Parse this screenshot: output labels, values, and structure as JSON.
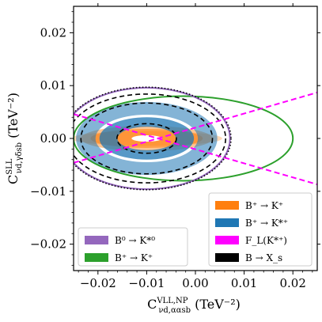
{
  "chart_data": {
    "type": "contour",
    "xlabel": "C^{VLL,NP}_{νd,ααsb} (TeV^{-2})",
    "ylabel": "C^{SLL}_{νd,γδsb} (TeV^{-2})",
    "xlim": [
      -0.025,
      0.025
    ],
    "ylim": [
      -0.025,
      0.025
    ],
    "xticks": [
      -0.02,
      -0.01,
      0.0,
      0.01,
      0.02
    ],
    "xtick_labels": [
      "−0.02",
      "−0.01",
      "0.00",
      "0.01",
      "0.02"
    ],
    "yticks": [
      -0.02,
      -0.01,
      0.0,
      0.01,
      0.02
    ],
    "ytick_labels": [
      "−0.02",
      "−0.01",
      "0.00",
      "0.01",
      "0.02"
    ],
    "colors": {
      "orange": "#ff7f0e",
      "blue": "#1f77b4",
      "magenta": "#ff00ff",
      "green": "#2ca02c",
      "purple": "#9467bd",
      "black": "#000000"
    },
    "legend_right": {
      "placement": "lower-right",
      "entries": [
        {
          "label": "B⁺ → K⁺",
          "color": "#ff7f0e"
        },
        {
          "label": "B⁺ → K*⁺",
          "color": "#1f77b4"
        },
        {
          "label": "F_L(K*⁺)",
          "color": "#ff00ff"
        },
        {
          "label": "B → X_s",
          "color": "#000000"
        }
      ]
    },
    "legend_left": {
      "placement": "lower-left",
      "entries": [
        {
          "label": "B⁰ → K*⁰",
          "color": "#9467bd"
        },
        {
          "label": "B⁺ → K⁺",
          "color": "#2ca02c"
        }
      ]
    },
    "regions": {
      "orange": [
        {
          "cx": -0.01,
          "cy": 0.0,
          "rx": 0.0155,
          "ry": 0.0014,
          "opacity": 0.3
        },
        {
          "cx": -0.01,
          "cy": 0.0,
          "rx": 0.0135,
          "ry": 0.0024,
          "opacity": 0.45
        },
        {
          "cx": -0.01,
          "cy": 0.0,
          "rx": 0.0115,
          "ry": 0.0018,
          "opacity": 0.55
        }
      ],
      "blue": [
        {
          "cx": -0.01,
          "cy": 0.0,
          "rx": 0.0145,
          "ry": 0.0069,
          "opacity": 0.55,
          "inner_rx": 0.0105,
          "inner_ry": 0.0045
        },
        {
          "cx": -0.01,
          "cy": 0.0,
          "rx": 0.0097,
          "ry": 0.004,
          "opacity": 0.75,
          "inner_rx": 0.006,
          "inner_ry": 0.0022
        }
      ],
      "white_core": {
        "cx": -0.01,
        "cy": 0.0,
        "rx": 0.0031,
        "ry": 0.0006
      },
      "black_dashed": [
        {
          "cx": -0.01,
          "cy": 0.0,
          "rx": 0.0162,
          "ry": 0.0084
        },
        {
          "cx": -0.01,
          "cy": 0.0,
          "rx": 0.0135,
          "ry": 0.0067
        },
        {
          "cx": -0.01,
          "cy": 0.0,
          "rx": 0.0061,
          "ry": 0.0028
        }
      ],
      "black_dotted": {
        "cx": -0.01,
        "cy": 0.0,
        "rx": 0.0173,
        "ry": 0.0097
      },
      "purple": {
        "cx": -0.01,
        "cy": 0.0,
        "rx": 0.0171,
        "ry": 0.0096
      },
      "green": {
        "cx": -0.0025,
        "cy": 0.0,
        "rx": 0.0225,
        "ry": 0.008
      },
      "magenta_lines": [
        {
          "x": [
            -0.025,
            0.025
          ],
          "y": [
            0.0046,
            -0.0087
          ]
        },
        {
          "x": [
            -0.025,
            0.025
          ],
          "y": [
            -0.0046,
            0.0087
          ]
        }
      ]
    }
  }
}
